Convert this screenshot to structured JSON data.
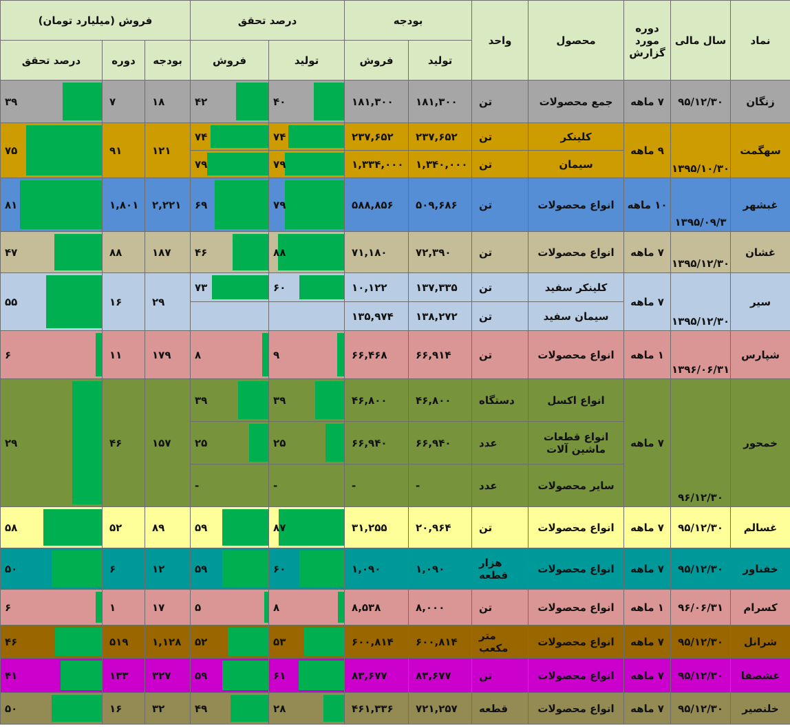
{
  "headers": {
    "symbol": "نماد",
    "fiscal_year": "سال مالی",
    "report_period": "دوره مورد گزارش",
    "product": "محصول",
    "unit": "واحد",
    "budget": "بودجه",
    "realization_pct": "درصد تحقق",
    "sales_bn": "فروش (میلیارد تومان)",
    "production": "تولید",
    "sales": "فروش",
    "budget_sub": "بودجه",
    "period_sub": "دوره",
    "realization_sub": "درصد تحقق"
  },
  "colors": {
    "header": "#d9e9c2",
    "bar": "#00b050"
  },
  "rows": [
    {
      "symbol": "زنگان",
      "fy": "۹۵/۱۲/۳۰",
      "period": "۷ ماهه",
      "bg": "#a6a6a6",
      "products": [
        {
          "name": "جمع محصولات",
          "unit": "تن",
          "bp": "۱۸۱,۳۰۰",
          "bs": "۱۸۱,۳۰۰",
          "pp": "۴۰",
          "pp_v": 40,
          "ps": "۴۲",
          "ps_v": 42
        }
      ],
      "sb": "۱۸",
      "sp": "۷",
      "sr": "۳۹",
      "sr_v": 39
    },
    {
      "symbol": "سهگمت",
      "fy": "۱۳۹۵/۱۰/۳۰",
      "period": "۹ ماهه",
      "bg": "#cc9c00",
      "products": [
        {
          "name": "کلینکر",
          "unit": "تن",
          "bp": "۲۳۷,۶۵۲",
          "bs": "۲۳۷,۶۵۲",
          "pp": "۷۴",
          "pp_v": 74,
          "ps": "۷۴",
          "ps_v": 74
        },
        {
          "name": "سیمان",
          "unit": "تن",
          "bp": "۱,۳۴۰,۰۰۰",
          "bs": "۱,۳۳۴,۰۰۰",
          "pp": "۷۹",
          "pp_v": 79,
          "ps": "۷۹",
          "ps_v": 79
        }
      ],
      "sb": "۱۲۱",
      "sp": "۹۱",
      "sr": "۷۵",
      "sr_v": 75
    },
    {
      "symbol": "غبشهر",
      "fy": "۱۳۹۵/۰۹/۳",
      "period": "۱۰ ماهه",
      "bg": "#558ed5",
      "products": [
        {
          "name": "انواع محصولات",
          "unit": "تن",
          "bp": "۵۰۹,۶۸۶",
          "bs": "۵۸۸,۸۵۶",
          "pp": "۷۹",
          "pp_v": 79,
          "ps": "۶۹",
          "ps_v": 69
        }
      ],
      "sb": "۲,۲۲۱",
      "sp": "۱,۸۰۱",
      "sr": "۸۱",
      "sr_v": 81
    },
    {
      "symbol": "غشان",
      "fy": "۱۳۹۵/۱۲/۳۰",
      "period": "۷ ماهه",
      "bg": "#c4bd97",
      "products": [
        {
          "name": "انواع محصولات",
          "unit": "تن",
          "bp": "۷۲,۳۹۰",
          "bs": "۷۱,۱۸۰",
          "pp": "۸۸",
          "pp_v": 88,
          "ps": "۴۶",
          "ps_v": 46
        }
      ],
      "sb": "۱۸۷",
      "sp": "۸۸",
      "sr": "۴۷",
      "sr_v": 47
    },
    {
      "symbol": "سیر",
      "fy": "۱۳۹۵/۱۲/۳۰",
      "period": "۷ ماهه",
      "bg": "#b8cce4",
      "products": [
        {
          "name": "کلینکر سفید",
          "unit": "تن",
          "bp": "۱۳۷,۳۳۵",
          "bs": "۱۰,۱۲۲",
          "pp": "۶۰",
          "pp_v": 60,
          "ps": "۷۳",
          "ps_v": 73
        },
        {
          "name": "سیمان سفید",
          "unit": "تن",
          "bp": "۱۳۸,۲۷۲",
          "bs": "۱۳۵,۹۷۴",
          "pp": "",
          "pp_v": 0,
          "ps": "",
          "ps_v": 0
        }
      ],
      "sb": "۲۹",
      "sp": "۱۶",
      "sr": "۵۵",
      "sr_v": 55
    },
    {
      "symbol": "شپارس",
      "fy": "۱۳۹۶/۰۶/۳۱",
      "period": "۱ ماهه",
      "bg": "#d99694",
      "products": [
        {
          "name": "انواع محصولات",
          "unit": "تن",
          "bp": "۶۶,۹۱۴",
          "bs": "۶۶,۴۶۸",
          "pp": "۹",
          "pp_v": 9,
          "ps": "۸",
          "ps_v": 8
        }
      ],
      "sb": "۱۷۹",
      "sp": "۱۱",
      "sr": "۶",
      "sr_v": 6
    },
    {
      "symbol": "خمحور",
      "fy": "۹۶/۱۲/۳۰",
      "period": "۷ ماهه",
      "bg": "#77933c",
      "products": [
        {
          "name": "انواع اکسل",
          "unit": "دستگاه",
          "bp": "۴۶,۸۰۰",
          "bs": "۴۶,۸۰۰",
          "pp": "۳۹",
          "pp_v": 39,
          "ps": "۳۹",
          "ps_v": 39
        },
        {
          "name": "انواع قطعات ماشین آلات",
          "unit": "عدد",
          "bp": "۶۶,۹۴۰",
          "bs": "۶۶,۹۴۰",
          "pp": "۲۵",
          "pp_v": 25,
          "ps": "۲۵",
          "ps_v": 25
        },
        {
          "name": "سایر محصولات",
          "unit": "عدد",
          "bp": "-",
          "bs": "-",
          "pp": "-",
          "pp_v": 0,
          "ps": "-",
          "ps_v": 0
        }
      ],
      "sb": "۱۵۷",
      "sp": "۴۶",
      "sr": "۲۹",
      "sr_v": 29
    },
    {
      "symbol": "غسالم",
      "fy": "۹۵/۱۲/۳۰",
      "period": "۷ ماهه",
      "bg": "#ffff99",
      "products": [
        {
          "name": "انواع محصولات",
          "unit": "تن",
          "bp": "۲۰,۹۶۴",
          "bs": "۳۱,۲۵۵",
          "pp": "۸۷",
          "pp_v": 87,
          "ps": "۵۹",
          "ps_v": 59
        }
      ],
      "sb": "۸۹",
      "sp": "۵۲",
      "sr": "۵۸",
      "sr_v": 58
    },
    {
      "symbol": "خفناور",
      "fy": "۹۵/۱۲/۳۰",
      "period": "۷ ماهه",
      "bg": "#009999",
      "products": [
        {
          "name": "انواع محصولات",
          "unit": "هزار قطعه",
          "bp": "۱,۰۹۰",
          "bs": "۱,۰۹۰",
          "pp": "۶۰",
          "pp_v": 60,
          "ps": "۵۹",
          "ps_v": 59
        }
      ],
      "sb": "۱۲",
      "sp": "۶",
      "sr": "۵۰",
      "sr_v": 50
    },
    {
      "symbol": "کسرام",
      "fy": "۹۶/۰۶/۳۱",
      "period": "۱ ماهه",
      "bg": "#d99694",
      "products": [
        {
          "name": "انواع محصولات",
          "unit": "تن",
          "bp": "۸,۰۰۰",
          "bs": "۸,۵۳۸",
          "pp": "۸",
          "pp_v": 8,
          "ps": "۵",
          "ps_v": 5
        }
      ],
      "sb": "۱۷",
      "sp": "۱",
      "sr": "۶",
      "sr_v": 6
    },
    {
      "symbol": "شرانل",
      "fy": "۹۵/۱۲/۳۰",
      "period": "۷ ماهه",
      "bg": "#996600",
      "products": [
        {
          "name": "انواع محصولات",
          "unit": "متر مکعب",
          "bp": "۶۰۰,۸۱۴",
          "bs": "۶۰۰,۸۱۴",
          "pp": "۵۳",
          "pp_v": 53,
          "ps": "۵۲",
          "ps_v": 52
        }
      ],
      "sb": "۱,۱۲۸",
      "sp": "۵۱۹",
      "sr": "۴۶",
      "sr_v": 46
    },
    {
      "symbol": "غشصفا",
      "fy": "۹۵/۱۲/۳۰",
      "period": "۷ ماهه",
      "bg": "#cc00cc",
      "products": [
        {
          "name": "انواع محصولات",
          "unit": "تن",
          "bp": "۸۳,۶۷۷",
          "bs": "۸۳,۶۷۷",
          "pp": "۶۱",
          "pp_v": 61,
          "ps": "۵۹",
          "ps_v": 59
        }
      ],
      "sb": "۳۲۷",
      "sp": "۱۳۳",
      "sr": "۴۱",
      "sr_v": 41
    },
    {
      "symbol": "خلنصیر",
      "fy": "۹۵/۱۲/۳۰",
      "period": "۷ ماهه",
      "bg": "#948a54",
      "products": [
        {
          "name": "انواع محصولات",
          "unit": "قطعه",
          "bp": "۷۲۱,۲۵۷",
          "bs": "۴۶۱,۳۳۶",
          "pp": "۲۸",
          "pp_v": 28,
          "ps": "۴۹",
          "ps_v": 49
        }
      ],
      "sb": "۳۲",
      "sp": "۱۶",
      "sr": "۵۰",
      "sr_v": 50
    }
  ]
}
